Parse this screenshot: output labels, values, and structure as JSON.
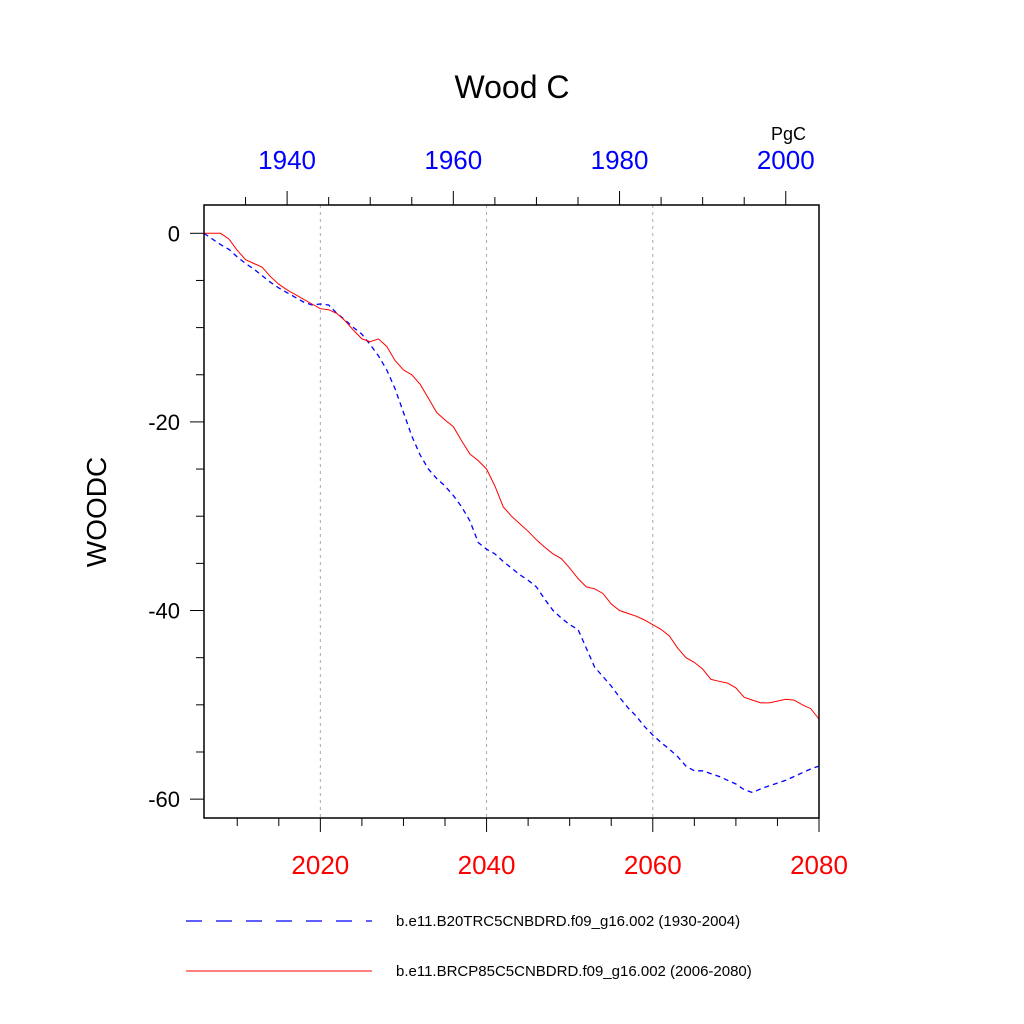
{
  "chart_data": {
    "type": "line",
    "title": "Wood C",
    "units": "PgC",
    "ylabel": "WOODC",
    "ylim": [
      -62,
      3
    ],
    "yticks": [
      0,
      -20,
      -40,
      -60
    ],
    "y_minor_step": 5,
    "grid": "vertical dashed at bottom-axis major ticks",
    "bottom_axis": {
      "range": [
        2006,
        2080
      ],
      "ticks": [
        2020,
        2040,
        2060,
        2080
      ],
      "minor_step": 5,
      "color": "#ff0000"
    },
    "top_axis": {
      "range": [
        1930,
        2004
      ],
      "ticks": [
        1940,
        1960,
        1980,
        2000
      ],
      "minor_step": 5,
      "color": "#0000ff"
    },
    "series": [
      {
        "name": "b.e11.B20TRC5CNBDRD.f09_g16.002 (1930-2004)",
        "axis": "top",
        "color": "#0000ff",
        "dash": "dashed",
        "x": [
          1930,
          1931,
          1932,
          1933,
          1934,
          1935,
          1936,
          1937,
          1938,
          1939,
          1940,
          1941,
          1942,
          1943,
          1944,
          1945,
          1946,
          1947,
          1948,
          1949,
          1950,
          1951,
          1952,
          1953,
          1954,
          1955,
          1956,
          1957,
          1958,
          1959,
          1960,
          1961,
          1962,
          1963,
          1964,
          1965,
          1966,
          1967,
          1968,
          1969,
          1970,
          1971,
          1972,
          1973,
          1974,
          1975,
          1976,
          1977,
          1978,
          1979,
          1980,
          1981,
          1982,
          1983,
          1984,
          1985,
          1986,
          1987,
          1988,
          1989,
          1990,
          1991,
          1992,
          1993,
          1994,
          1995,
          1996,
          1997,
          1998,
          1999,
          2000,
          2001,
          2002,
          2003,
          2004
        ],
        "values": [
          0,
          -0.6,
          -1.2,
          -1.7,
          -2.5,
          -3.2,
          -3.8,
          -4.5,
          -5.2,
          -5.8,
          -6.3,
          -6.8,
          -7.3,
          -7.6,
          -7.5,
          -7.6,
          -8.5,
          -9.2,
          -10.0,
          -10.7,
          -11.8,
          -13.0,
          -14.5,
          -16.5,
          -19.0,
          -21.5,
          -23.5,
          -25.0,
          -26.0,
          -26.8,
          -27.8,
          -29.0,
          -30.5,
          -32.8,
          -33.5,
          -34.0,
          -34.8,
          -35.5,
          -36.2,
          -36.8,
          -37.5,
          -38.8,
          -40.0,
          -40.8,
          -41.5,
          -42.0,
          -44.0,
          -46.0,
          -47.0,
          -48.0,
          -49.2,
          -50.3,
          -51.2,
          -52.3,
          -53.2,
          -54.0,
          -54.7,
          -55.5,
          -56.5,
          -57.0,
          -57.0,
          -57.3,
          -57.6,
          -58.0,
          -58.4,
          -59.0,
          -59.3,
          -58.9,
          -58.6,
          -58.3,
          -58.0,
          -57.6,
          -57.2,
          -56.8,
          -56.5
        ]
      },
      {
        "name": "b.e11.BRCP85C5CNBDRD.f09_g16.002 (2006-2080)",
        "axis": "bottom",
        "color": "#ff0000",
        "dash": "solid",
        "x": [
          2006,
          2007,
          2008,
          2009,
          2010,
          2011,
          2012,
          2013,
          2014,
          2015,
          2016,
          2017,
          2018,
          2019,
          2020,
          2021,
          2022,
          2023,
          2024,
          2025,
          2026,
          2027,
          2028,
          2029,
          2030,
          2031,
          2032,
          2033,
          2034,
          2035,
          2036,
          2037,
          2038,
          2039,
          2040,
          2041,
          2042,
          2043,
          2044,
          2045,
          2046,
          2047,
          2048,
          2049,
          2050,
          2051,
          2052,
          2053,
          2054,
          2055,
          2056,
          2057,
          2058,
          2059,
          2060,
          2061,
          2062,
          2063,
          2064,
          2065,
          2066,
          2067,
          2068,
          2069,
          2070,
          2071,
          2072,
          2073,
          2074,
          2075,
          2076,
          2077,
          2078,
          2079,
          2080
        ],
        "values": [
          0,
          0,
          0,
          -0.6,
          -1.8,
          -2.8,
          -3.2,
          -3.6,
          -4.6,
          -5.4,
          -6.0,
          -6.5,
          -7.0,
          -7.5,
          -8.0,
          -8.1,
          -8.5,
          -9.3,
          -10.3,
          -11.2,
          -11.5,
          -11.2,
          -12.0,
          -13.5,
          -14.5,
          -15.0,
          -16.0,
          -17.5,
          -19.0,
          -19.8,
          -20.5,
          -22.0,
          -23.4,
          -24.1,
          -25.0,
          -26.8,
          -29.0,
          -30.0,
          -30.8,
          -31.6,
          -32.5,
          -33.3,
          -34.0,
          -34.5,
          -35.5,
          -36.6,
          -37.5,
          -37.7,
          -38.2,
          -39.3,
          -40.0,
          -40.3,
          -40.6,
          -41.0,
          -41.5,
          -42.0,
          -42.7,
          -44.0,
          -45.0,
          -45.5,
          -46.2,
          -47.3,
          -47.5,
          -47.7,
          -48.2,
          -49.2,
          -49.5,
          -49.8,
          -49.8,
          -49.6,
          -49.4,
          -49.5,
          -50.0,
          -50.4,
          -51.5
        ]
      }
    ],
    "legend_placement": "bottom"
  }
}
